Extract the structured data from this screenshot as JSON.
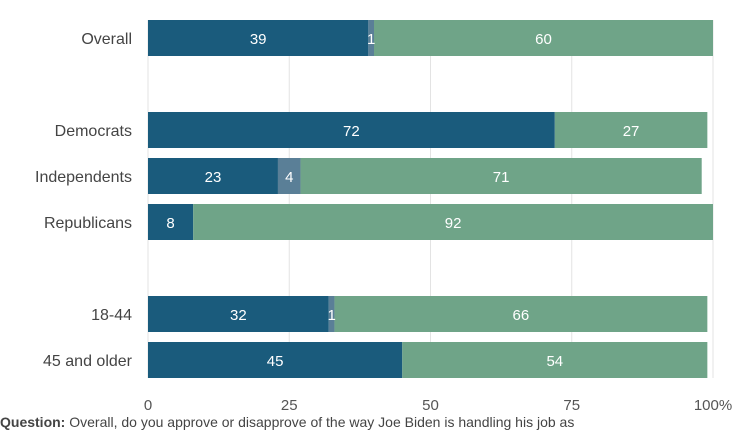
{
  "chart_data": {
    "type": "bar",
    "orientation": "horizontal",
    "stacked": true,
    "categories": [
      "Overall",
      "Democrats",
      "Independents",
      "Republicans",
      "18-44",
      "45 and older"
    ],
    "series": [
      {
        "key": "approve",
        "values": [
          39,
          72,
          23,
          8,
          32,
          45
        ],
        "color": "#1a5b7c"
      },
      {
        "key": "no_opinion",
        "values": [
          1,
          0,
          4,
          0,
          1,
          0
        ],
        "color": "#5a7f97"
      },
      {
        "key": "disapprove",
        "values": [
          60,
          27,
          71,
          92,
          66,
          54
        ],
        "color": "#6fa488"
      }
    ],
    "xlim": [
      0,
      100
    ],
    "xticks": [
      "0",
      "25",
      "50",
      "75",
      "100%"
    ],
    "grid": true
  },
  "footer": {
    "question_label": "Question:",
    "question_text": "Overall, do you approve or disapprove of the way Joe Biden is handling his job as"
  }
}
